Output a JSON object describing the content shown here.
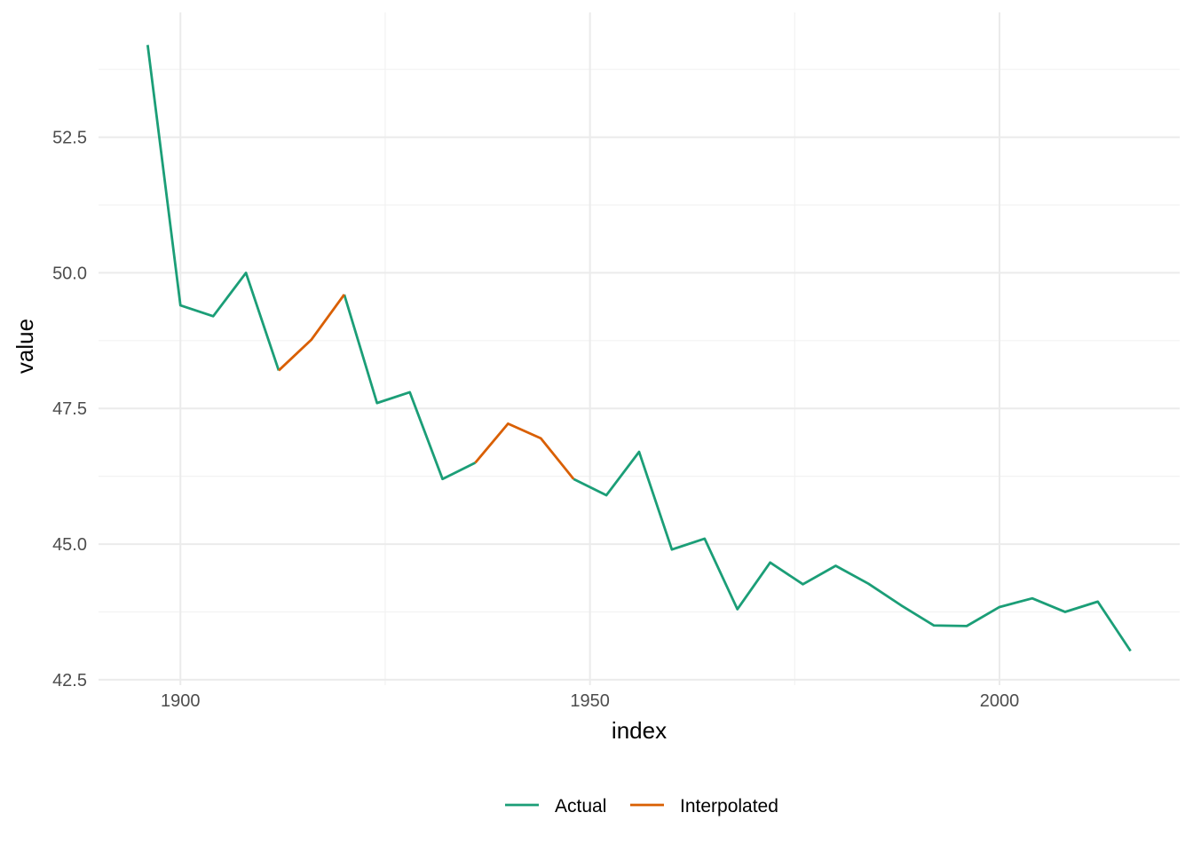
{
  "chart_data": {
    "type": "line",
    "xlabel": "index",
    "ylabel": "value",
    "xlim": [
      1890,
      2022
    ],
    "ylim": [
      42.4,
      54.8
    ],
    "x_ticks": [
      1900,
      1950,
      2000
    ],
    "x_tick_labels": [
      "1900",
      "1950",
      "2000"
    ],
    "x_minor_ticks": [
      1925,
      1975
    ],
    "y_ticks": [
      42.5,
      45.0,
      47.5,
      50.0,
      52.5
    ],
    "y_tick_labels": [
      "42.5",
      "45.0",
      "47.5",
      "50.0",
      "52.5"
    ],
    "y_minor_ticks": [
      43.75,
      46.25,
      48.75,
      51.25,
      53.75
    ],
    "grid": true,
    "legend_position": "bottom",
    "colors": {
      "Actual": "#1b9e77",
      "Interpolated": "#d95f02"
    },
    "series": [
      {
        "name": "Actual",
        "color": "#1b9e77",
        "segments": [
          {
            "x": [
              1896,
              1900,
              1904,
              1908,
              1912
            ],
            "y": [
              54.2,
              49.4,
              49.2,
              50.0,
              48.2
            ]
          },
          {
            "x": [
              1920,
              1924,
              1928,
              1932,
              1936
            ],
            "y": [
              49.6,
              47.6,
              47.8,
              46.2,
              46.5
            ]
          },
          {
            "x": [
              1948,
              1952,
              1956,
              1960,
              1964,
              1968,
              1972,
              1976,
              1980,
              1984,
              1988,
              1992,
              1996,
              2000,
              2004,
              2008,
              2012,
              2016
            ],
            "y": [
              46.2,
              45.9,
              46.7,
              44.9,
              45.1,
              43.8,
              44.66,
              44.26,
              44.6,
              44.27,
              43.87,
              43.5,
              43.49,
              43.84,
              44.0,
              43.75,
              43.94,
              43.03
            ]
          }
        ]
      },
      {
        "name": "Interpolated",
        "color": "#d95f02",
        "segments": [
          {
            "x": [
              1912,
              1916,
              1920
            ],
            "y": [
              48.2,
              48.77,
              49.6
            ]
          },
          {
            "x": [
              1936,
              1940,
              1944,
              1948
            ],
            "y": [
              46.5,
              47.22,
              46.95,
              46.2
            ]
          }
        ]
      }
    ]
  }
}
